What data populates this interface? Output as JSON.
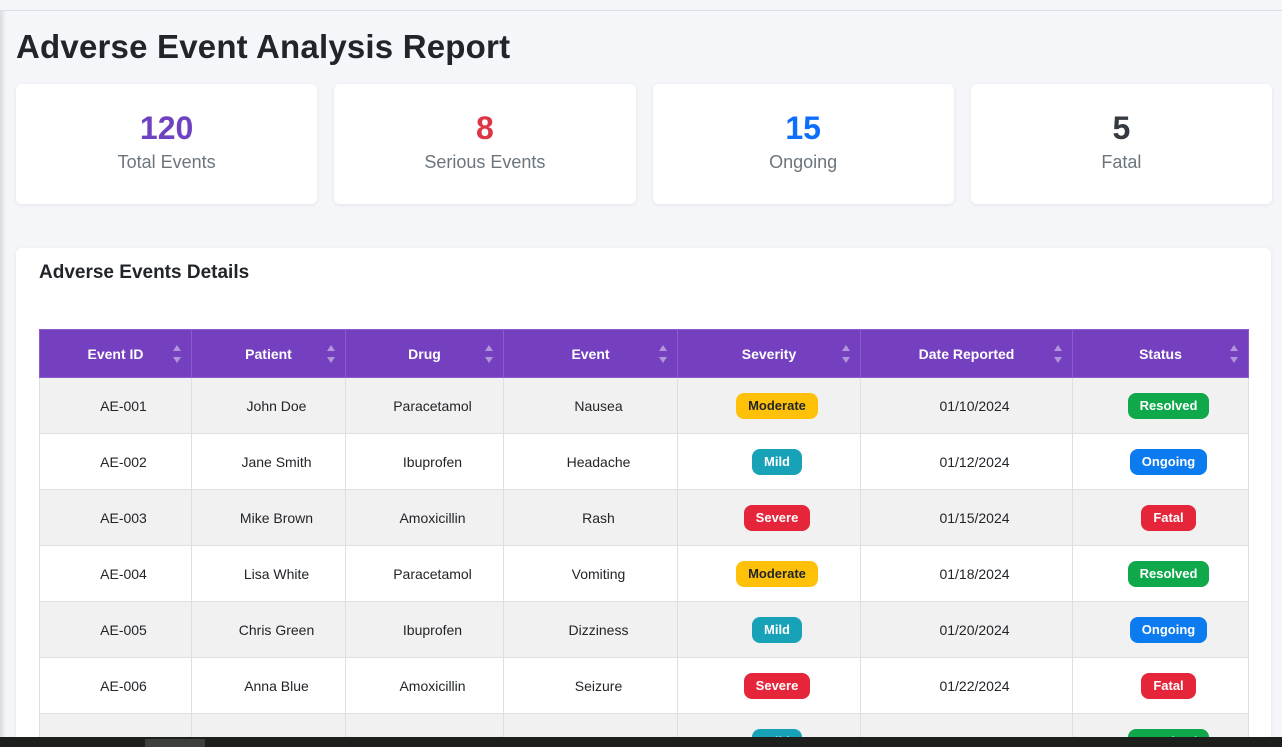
{
  "header": {
    "title": "Adverse Event Analysis Report"
  },
  "stats": [
    {
      "value": "120",
      "label": "Total Events",
      "color": "#6f42c1"
    },
    {
      "value": "8",
      "label": "Serious Events",
      "color": "#dc3545"
    },
    {
      "value": "15",
      "label": "Ongoing",
      "color": "#0d6efd"
    },
    {
      "value": "5",
      "label": "Fatal",
      "color": "#343a40"
    }
  ],
  "details": {
    "title": "Adverse Events Details",
    "columns": [
      "Event ID",
      "Patient",
      "Drug",
      "Event",
      "Severity",
      "Date Reported",
      "Status"
    ],
    "rows": [
      {
        "id": "AE-001",
        "patient": "John Doe",
        "drug": "Paracetamol",
        "event": "Nausea",
        "severity": "Moderate",
        "date": "01/10/2024",
        "status": "Resolved"
      },
      {
        "id": "AE-002",
        "patient": "Jane Smith",
        "drug": "Ibuprofen",
        "event": "Headache",
        "severity": "Mild",
        "date": "01/12/2024",
        "status": "Ongoing"
      },
      {
        "id": "AE-003",
        "patient": "Mike Brown",
        "drug": "Amoxicillin",
        "event": "Rash",
        "severity": "Severe",
        "date": "01/15/2024",
        "status": "Fatal"
      },
      {
        "id": "AE-004",
        "patient": "Lisa White",
        "drug": "Paracetamol",
        "event": "Vomiting",
        "severity": "Moderate",
        "date": "01/18/2024",
        "status": "Resolved"
      },
      {
        "id": "AE-005",
        "patient": "Chris Green",
        "drug": "Ibuprofen",
        "event": "Dizziness",
        "severity": "Mild",
        "date": "01/20/2024",
        "status": "Ongoing"
      },
      {
        "id": "AE-006",
        "patient": "Anna Blue",
        "drug": "Amoxicillin",
        "event": "Seizure",
        "severity": "Severe",
        "date": "01/22/2024",
        "status": "Fatal"
      },
      {
        "id": "",
        "patient": "",
        "drug": "",
        "event": "",
        "severity": "Mild",
        "date": "",
        "status": "Resolved"
      }
    ]
  },
  "badge_colors": {
    "Moderate": {
      "bg": "#ffc107",
      "fg": "#212529"
    },
    "Mild": {
      "bg": "#17a2b8",
      "fg": "#ffffff"
    },
    "Severe": {
      "bg": "#e4253a",
      "fg": "#ffffff"
    },
    "Resolved": {
      "bg": "#0fa84b",
      "fg": "#ffffff"
    },
    "Ongoing": {
      "bg": "#0d7bf0",
      "fg": "#ffffff"
    },
    "Fatal": {
      "bg": "#e4253a",
      "fg": "#ffffff"
    }
  }
}
